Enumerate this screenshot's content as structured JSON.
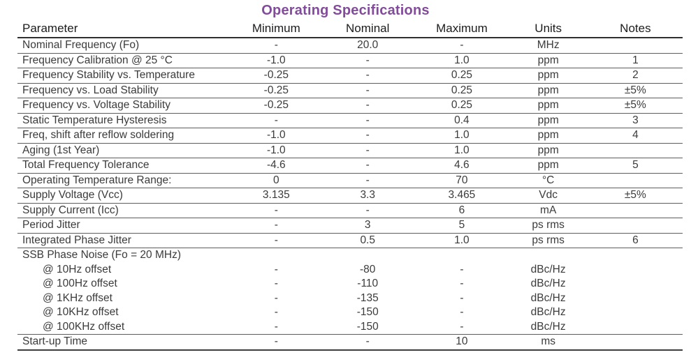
{
  "title": "Operating Specifications",
  "theme": {
    "title_color": "#824b9b",
    "rule_color": "#5c5c5c"
  },
  "table": {
    "columns": [
      "Parameter",
      "Minimum",
      "Nominal",
      "Maximum",
      "Units",
      "Notes"
    ],
    "rows": [
      {
        "parameter": "Nominal Frequency (Fo)",
        "min": "-",
        "nom": "20.0",
        "max": "-",
        "units": "MHz",
        "notes": ""
      },
      {
        "parameter": "Frequency Calibration @ 25 °C",
        "min": "-1.0",
        "nom": "-",
        "max": "1.0",
        "units": "ppm",
        "notes": "1"
      },
      {
        "parameter": "Frequency Stability vs. Temperature",
        "min": "-0.25",
        "nom": "-",
        "max": "0.25",
        "units": "ppm",
        "notes": "2"
      },
      {
        "parameter": "Frequency vs. Load Stability",
        "min": "-0.25",
        "nom": "-",
        "max": "0.25",
        "units": "ppm",
        "notes": "±5%"
      },
      {
        "parameter": "Frequency vs. Voltage Stability",
        "min": "-0.25",
        "nom": "-",
        "max": "0.25",
        "units": "ppm",
        "notes": "±5%"
      },
      {
        "parameter": "Static Temperature Hysteresis",
        "min": "-",
        "nom": "-",
        "max": "0.4",
        "units": "ppm",
        "notes": "3"
      },
      {
        "parameter": "Freq, shift after reflow soldering",
        "min": "-1.0",
        "nom": "-",
        "max": "1.0",
        "units": "ppm",
        "notes": "4"
      },
      {
        "parameter": "Aging (1st Year)",
        "min": "-1.0",
        "nom": "-",
        "max": "1.0",
        "units": "ppm",
        "notes": ""
      },
      {
        "parameter": "Total Frequency Tolerance",
        "min": "-4.6",
        "nom": "-",
        "max": "4.6",
        "units": "ppm",
        "notes": "5"
      },
      {
        "parameter": "Operating Temperature Range:",
        "min": "0",
        "nom": "-",
        "max": "70",
        "units": "°C",
        "notes": ""
      },
      {
        "parameter": "Supply Voltage (Vcc)",
        "min": "3.135",
        "nom": "3.3",
        "max": "3.465",
        "units": "Vdc",
        "notes": "±5%"
      },
      {
        "parameter": "Supply Current (Icc)",
        "min": "-",
        "nom": "-",
        "max": "6",
        "units": "mA",
        "notes": ""
      },
      {
        "parameter": "Period Jitter",
        "min": "-",
        "nom": "3",
        "max": "5",
        "units": "ps rms",
        "notes": ""
      },
      {
        "parameter": "Integrated Phase Jitter",
        "min": "-",
        "nom": "0.5",
        "max": "1.0",
        "units": "ps rms",
        "notes": "6"
      },
      {
        "parameter": "SSB Phase Noise (Fo = 20 MHz)",
        "min": "",
        "nom": "",
        "max": "",
        "units": "",
        "notes": ""
      },
      {
        "parameter": "@ 10Hz offset",
        "indent": true,
        "min": "-",
        "nom": "-80",
        "max": "-",
        "units": "dBc/Hz",
        "notes": ""
      },
      {
        "parameter": "@ 100Hz offset",
        "indent": true,
        "min": "-",
        "nom": "-110",
        "max": "-",
        "units": "dBc/Hz",
        "notes": ""
      },
      {
        "parameter": "@ 1KHz offset",
        "indent": true,
        "min": "-",
        "nom": "-135",
        "max": "-",
        "units": "dBc/Hz",
        "notes": ""
      },
      {
        "parameter": "@ 10KHz offset",
        "indent": true,
        "min": "-",
        "nom": "-150",
        "max": "-",
        "units": "dBc/Hz",
        "notes": ""
      },
      {
        "parameter": "@ 100KHz offset",
        "indent": true,
        "min": "-",
        "nom": "-150",
        "max": "-",
        "units": "dBc/Hz",
        "notes": ""
      },
      {
        "parameter": "Start-up Time",
        "min": "-",
        "nom": "-",
        "max": "10",
        "units": "ms",
        "notes": ""
      }
    ]
  }
}
